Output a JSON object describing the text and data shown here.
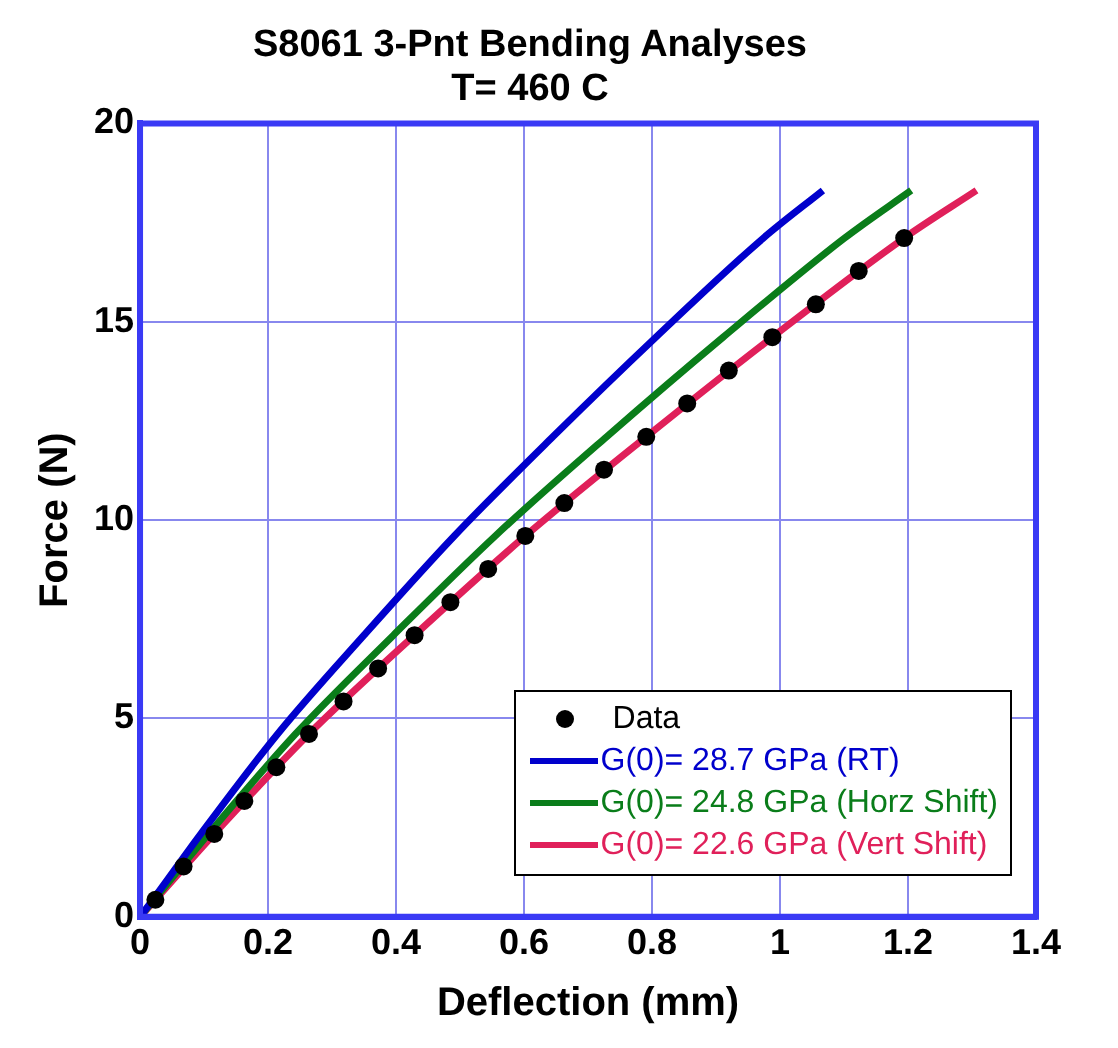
{
  "chart_data": {
    "type": "line",
    "title": "S8061 3-Pnt Bending Analyses",
    "subtitle": "T= 460 C",
    "xlabel": "Deflection (mm)",
    "ylabel": "Force (N)",
    "xlim": [
      0,
      1.4
    ],
    "xticks": [
      0,
      0.2,
      0.4,
      0.6,
      0.8,
      1,
      1.2,
      1.4
    ],
    "ylim": [
      0,
      20
    ],
    "yticks": [
      0,
      5,
      10,
      15,
      20
    ],
    "grid": true,
    "legend": "bottom right",
    "series": [
      {
        "name": "Data",
        "type": "scatter",
        "marker": "circle",
        "color": "#000000",
        "x": [
          0.024,
          0.068,
          0.116,
          0.163,
          0.213,
          0.264,
          0.318,
          0.372,
          0.429,
          0.485,
          0.544,
          0.602,
          0.663,
          0.725,
          0.791,
          0.855,
          0.92,
          0.988,
          1.056,
          1.123,
          1.194
        ],
        "values": [
          0.43,
          1.27,
          2.09,
          2.92,
          3.77,
          4.61,
          5.43,
          6.26,
          7.1,
          7.93,
          8.77,
          9.6,
          10.43,
          11.27,
          12.1,
          12.94,
          13.77,
          14.61,
          15.44,
          16.28,
          17.11
        ]
      },
      {
        "name": "G(0)= 28.7 GPa (RT)",
        "color": "#0000cc",
        "x": [
          0,
          0.02,
          0.095,
          0.215,
          0.35,
          0.491,
          0.645,
          0.806,
          0.974,
          1.067
        ],
        "values": [
          0,
          0.43,
          2.09,
          4.61,
          7.1,
          9.6,
          12.1,
          14.61,
          17.11,
          18.31
        ]
      },
      {
        "name": "G(0)= 24.8 GPa (Horz Shift)",
        "color": "#0a7d1a",
        "x": [
          0,
          0.022,
          0.107,
          0.243,
          0.396,
          0.555,
          0.729,
          0.911,
          1.101,
          1.205
        ],
        "values": [
          0,
          0.43,
          2.09,
          4.61,
          7.1,
          9.6,
          12.1,
          14.61,
          17.11,
          18.31
        ]
      },
      {
        "name": "G(0)= 22.6 GPa (Vert Shift)",
        "color": "#e0205a",
        "x": [
          0,
          0.024,
          0.116,
          0.264,
          0.429,
          0.602,
          0.791,
          0.988,
          1.194,
          1.307
        ],
        "values": [
          0,
          0.43,
          2.09,
          4.61,
          7.1,
          9.6,
          12.1,
          14.61,
          17.11,
          18.31
        ]
      }
    ]
  }
}
